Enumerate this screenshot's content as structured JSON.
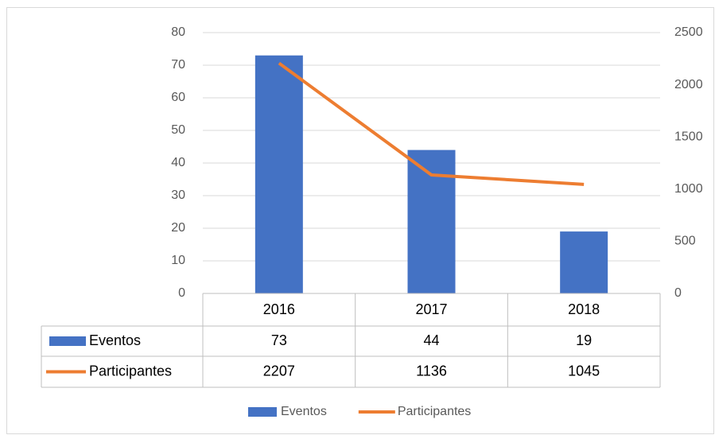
{
  "chart_data": {
    "type": "combo",
    "categories": [
      "2016",
      "2017",
      "2018"
    ],
    "series": [
      {
        "name": "Eventos",
        "type": "bar",
        "color": "#4472c4",
        "values": [
          73,
          44,
          19
        ]
      },
      {
        "name": "Participantes",
        "type": "line",
        "axis": "y2",
        "color": "#ed7d31",
        "values": [
          2207,
          1136,
          1045
        ]
      }
    ],
    "ylim": [
      0,
      80
    ],
    "yticks": [
      0,
      10,
      20,
      30,
      40,
      50,
      60,
      70,
      80
    ],
    "y2lim": [
      0,
      2500
    ],
    "y2ticks": [
      0,
      500,
      1000,
      1500,
      2000,
      2500
    ],
    "grid": true,
    "data_table": true,
    "legend": "bottom"
  }
}
